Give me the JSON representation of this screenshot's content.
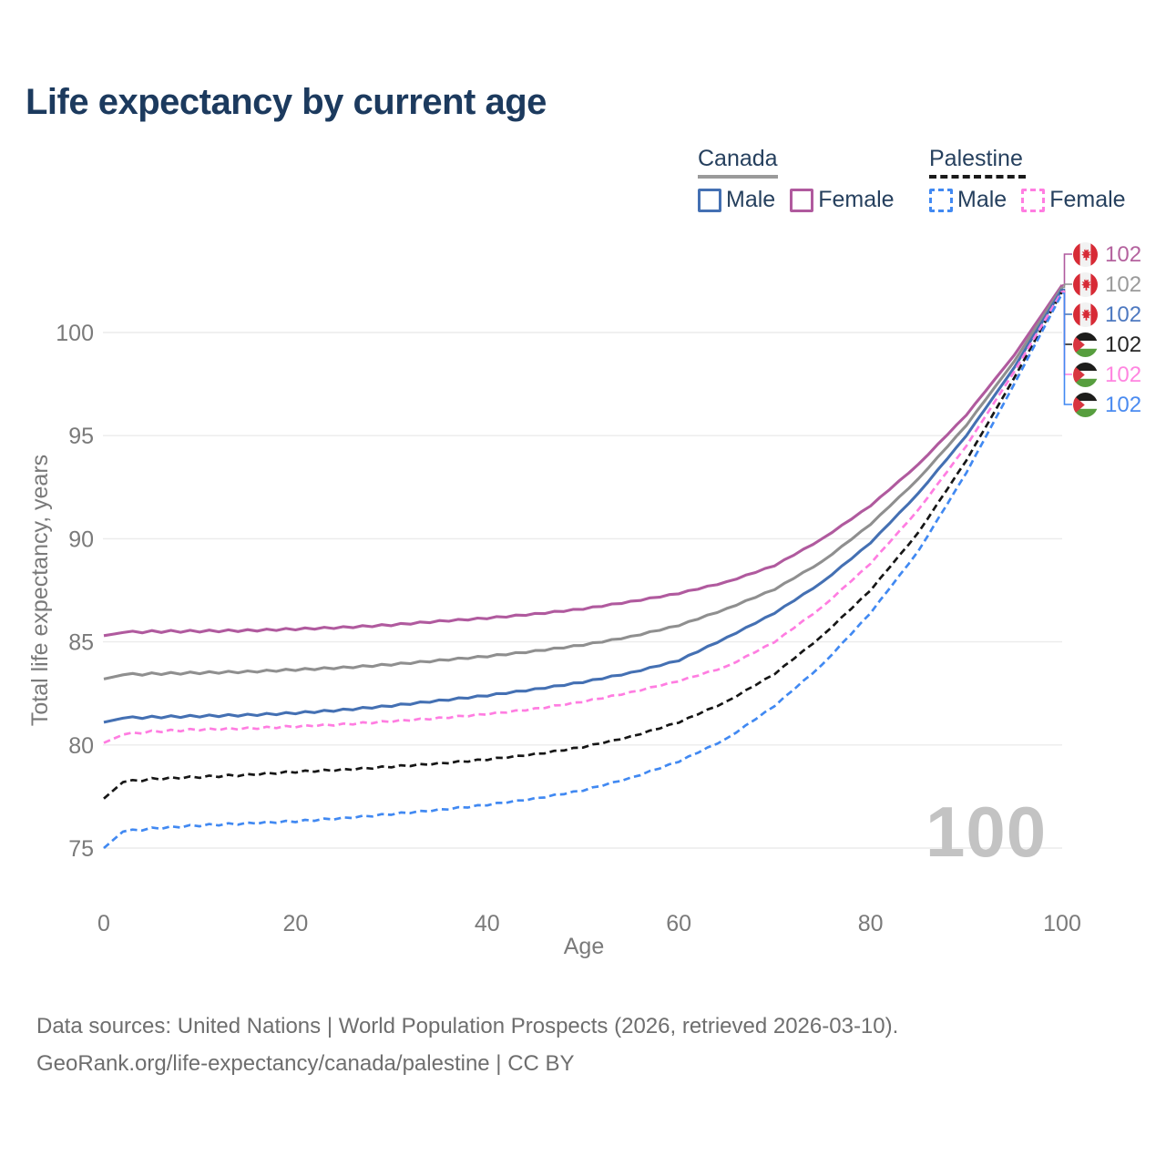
{
  "title": "Life expectancy by current age",
  "legend": {
    "groups": [
      {
        "label": "Canada",
        "line_style": "solid",
        "underline_color": "#9a9a9a",
        "items": [
          {
            "label": "Male",
            "color": "#4470b3"
          },
          {
            "label": "Female",
            "color": "#b05a9e"
          }
        ]
      },
      {
        "label": "Palestine",
        "line_style": "dashed",
        "underline_color": "#1a1a1a",
        "items": [
          {
            "label": "Male",
            "color": "#4189f2"
          },
          {
            "label": "Female",
            "color": "#ff7de1"
          }
        ]
      }
    ]
  },
  "chart_data": {
    "type": "line",
    "title": "Life expectancy by current age",
    "xlabel": "Age",
    "ylabel": "Total life expectancy, years",
    "xlim": [
      0,
      100
    ],
    "ylim": [
      74.5,
      103
    ],
    "x_ticks": [
      0,
      20,
      40,
      60,
      80,
      100
    ],
    "y_ticks": [
      75,
      80,
      85,
      90,
      95,
      100
    ],
    "grid": "horizontal-only",
    "legend_position": "top-right",
    "ages": [
      0,
      2,
      5,
      10,
      15,
      20,
      25,
      30,
      35,
      40,
      45,
      50,
      55,
      60,
      65,
      70,
      75,
      80,
      85,
      90,
      95,
      100
    ],
    "series": [
      {
        "name": "Canada Female",
        "country": "Canada",
        "sex": "Female",
        "color": "#b05a9e",
        "dashed": false,
        "flag": "canada",
        "end_label": "102",
        "label_color": "#b4629e",
        "values": [
          85.3,
          85.45,
          85.5,
          85.52,
          85.55,
          85.62,
          85.7,
          85.82,
          86.0,
          86.15,
          86.35,
          86.6,
          86.95,
          87.35,
          87.9,
          88.7,
          90.0,
          91.6,
          93.6,
          96.0,
          98.9,
          102.3
        ]
      },
      {
        "name": "Canada Both Sexes",
        "country": "Canada",
        "sex": "All",
        "color": "#8f8f8f",
        "dashed": false,
        "flag": "canada",
        "end_label": "102",
        "label_color": "#9a9a9a",
        "values": [
          83.2,
          83.4,
          83.45,
          83.5,
          83.55,
          83.65,
          83.75,
          83.9,
          84.1,
          84.3,
          84.55,
          84.85,
          85.25,
          85.8,
          86.6,
          87.55,
          88.9,
          90.7,
          92.9,
          95.5,
          98.6,
          102.2
        ]
      },
      {
        "name": "Canada Male",
        "country": "Canada",
        "sex": "Male",
        "color": "#4470b3",
        "dashed": false,
        "flag": "canada",
        "end_label": "102",
        "label_color": "#4e79c0",
        "values": [
          81.1,
          81.3,
          81.35,
          81.4,
          81.45,
          81.55,
          81.7,
          81.9,
          82.15,
          82.4,
          82.7,
          83.05,
          83.5,
          84.1,
          85.2,
          86.4,
          87.9,
          89.8,
          92.2,
          95.0,
          98.3,
          102.1
        ]
      },
      {
        "name": "Palestine Both Sexes",
        "country": "Palestine",
        "sex": "All",
        "color": "#161616",
        "dashed": true,
        "flag": "palestine",
        "end_label": "102",
        "label_color": "#262626",
        "values": [
          77.4,
          78.2,
          78.35,
          78.45,
          78.55,
          78.7,
          78.8,
          78.95,
          79.1,
          79.3,
          79.55,
          79.9,
          80.4,
          81.1,
          82.1,
          83.45,
          85.3,
          87.5,
          90.3,
          93.8,
          97.8,
          102.0
        ]
      },
      {
        "name": "Palestine Female",
        "country": "Palestine",
        "sex": "Female",
        "color": "#ff7de1",
        "dashed": true,
        "flag": "palestine",
        "end_label": "102",
        "label_color": "#ff85e0",
        "values": [
          80.1,
          80.5,
          80.65,
          80.75,
          80.8,
          80.9,
          81.0,
          81.15,
          81.3,
          81.5,
          81.75,
          82.1,
          82.55,
          83.1,
          83.8,
          85.0,
          86.7,
          88.8,
          91.4,
          94.5,
          98.1,
          102.0
        ]
      },
      {
        "name": "Palestine Male",
        "country": "Palestine",
        "sex": "Male",
        "color": "#4189f2",
        "dashed": true,
        "flag": "palestine",
        "end_label": "102",
        "label_color": "#4b8bf0",
        "values": [
          75.0,
          75.8,
          75.95,
          76.1,
          76.2,
          76.3,
          76.45,
          76.65,
          76.85,
          77.1,
          77.4,
          77.8,
          78.4,
          79.2,
          80.3,
          81.9,
          83.9,
          86.4,
          89.4,
          93.2,
          97.5,
          101.9
        ]
      }
    ]
  },
  "watermark": "100",
  "colors": {
    "title": "#1c3a5e",
    "axis_text": "#7a7a7a",
    "gridline": "#ebebeb",
    "watermark": "#c3c3c3",
    "footer_text": "#6e6e6e"
  },
  "footer": {
    "line1": "Data sources: United Nations | World Population Prospects (2026, retrieved 2026-03-10).",
    "line2": "GeoRank.org/life-expectancy/canada/palestine | CC BY"
  }
}
